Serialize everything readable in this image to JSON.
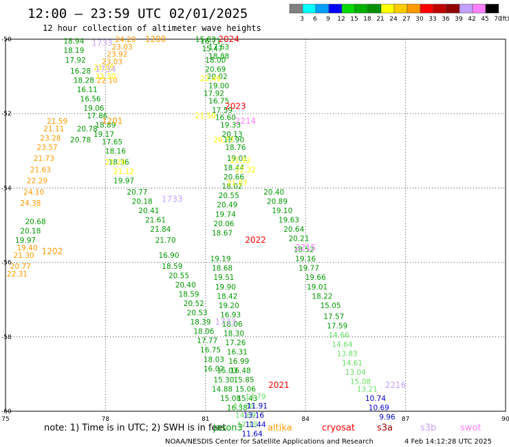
{
  "header": {
    "title": "12:00 — 23:59 UTC 02/01/2025",
    "subtitle": "12 hour collection of altimeter wave heights"
  },
  "legend": {
    "colors": [
      "#808080",
      "#00ffff",
      "#00a0ff",
      "#0000ff",
      "#00d800",
      "#00b000",
      "#009000",
      "#ffff00",
      "#ffcc00",
      "#ff9900",
      "#ff0000",
      "#c00000",
      "#900000",
      "#c4a0ff",
      "#ff80ff",
      "#000000"
    ],
    "labels": [
      "3",
      "6",
      "9",
      "12",
      "15",
      "18",
      "21",
      "24",
      "27",
      "30",
      "33",
      "36",
      "39",
      "42",
      "45",
      "70"
    ],
    "unit": "(ft)"
  },
  "note": {
    "text": "note:  1) Time is in UTC; 2) SWH is in feet"
  },
  "satellites": [
    {
      "name": "jason3",
      "color": "#009900"
    },
    {
      "name": "altika",
      "color": "#ff9900"
    },
    {
      "name": "cryosat",
      "color": "#ff0000"
    },
    {
      "name": "s3a",
      "color": "#aa0000"
    },
    {
      "name": "s3b",
      "color": "#c4a0ff"
    },
    {
      "name": "swot",
      "color": "#ff80ff"
    }
  ],
  "footer": {
    "credit": "NOAA/NESDIS Center for Satellite Applications and Research",
    "timestamp": "4 Feb 14:12:28 UTC 2025"
  },
  "chart_data": {
    "type": "scatter",
    "title": "12:00 — 23:59 UTC 02/01/2025",
    "xlabel": "",
    "ylabel": "",
    "xlim": [
      75,
      90
    ],
    "ylim": [
      -60,
      -50
    ],
    "xticks": [
      "75",
      "78",
      "81",
      "84",
      "87",
      "90"
    ],
    "yticks": [
      "-50",
      "-52",
      "-54",
      "-56",
      "-58",
      "-60"
    ],
    "grid": true,
    "pass_labels": [
      {
        "text": "1200",
        "x": 79.5,
        "y": -50.0,
        "color": "#ff9900"
      },
      {
        "text": "1733",
        "x": 77.9,
        "y": -50.1,
        "color": "#c4a0ff"
      },
      {
        "text": "1734",
        "x": 78.0,
        "y": -50.8,
        "color": "#c4a0ff"
      },
      {
        "text": "1201",
        "x": 78.2,
        "y": -52.2,
        "color": "#ff9900"
      },
      {
        "text": "1733",
        "x": 80.0,
        "y": -54.3,
        "color": "#c4a0ff"
      },
      {
        "text": "1202",
        "x": 76.4,
        "y": -55.7,
        "color": "#ff9900"
      },
      {
        "text": "2024",
        "x": 81.7,
        "y": -50.0,
        "color": "#ff0000"
      },
      {
        "text": "2023",
        "x": 81.9,
        "y": -51.8,
        "color": "#ff0000"
      },
      {
        "text": "2214",
        "x": 82.2,
        "y": -52.2,
        "color": "#ff80ff"
      },
      {
        "text": "2022",
        "x": 82.5,
        "y": -55.4,
        "color": "#ff0000"
      },
      {
        "text": "2215",
        "x": 84.0,
        "y": -55.6,
        "color": "#ff80ff"
      },
      {
        "text": "1733",
        "x": 81.6,
        "y": -57.6,
        "color": "#c4a0ff"
      },
      {
        "text": "2021",
        "x": 83.2,
        "y": -59.3,
        "color": "#ff0000"
      },
      {
        "text": "2216",
        "x": 86.7,
        "y": -59.3,
        "color": "#c4a0ff"
      }
    ],
    "series": [
      {
        "name": "1200",
        "color": "#ff9900",
        "points": [
          [
            78.6,
            -50.0,
            "24.20"
          ],
          [
            78.5,
            -50.2,
            "23.03"
          ],
          [
            78.35,
            -50.4,
            "23.92"
          ],
          [
            78.2,
            -50.6,
            "23.03"
          ],
          [
            78.05,
            -51.1,
            "22.10"
          ]
        ]
      },
      {
        "name": "1201",
        "color": "#ff9900",
        "points": [
          [
            76.55,
            -52.2,
            "21.59"
          ],
          [
            76.45,
            -52.4,
            "21.11"
          ],
          [
            76.35,
            -52.65,
            "23.28"
          ],
          [
            76.25,
            -52.9,
            "23.57"
          ],
          [
            76.15,
            -53.2,
            "21.73"
          ],
          [
            76.05,
            -53.5,
            "21.63"
          ],
          [
            75.95,
            -53.8,
            "22.29"
          ],
          [
            75.85,
            -54.1,
            "24.10"
          ],
          [
            75.75,
            -54.4,
            "24.38"
          ],
          [
            75.65,
            -55.6,
            "19.40"
          ],
          [
            75.55,
            -55.8,
            "21.30"
          ],
          [
            75.45,
            -56.1,
            "20.77"
          ],
          [
            75.35,
            -56.3,
            "22.31"
          ]
        ]
      },
      {
        "name": "1733",
        "color": "#009900",
        "points": [
          [
            77.05,
            -50.05,
            "18.94"
          ],
          [
            77.05,
            -50.3,
            "18.19"
          ],
          [
            77.1,
            -50.55,
            "17.92"
          ],
          [
            77.25,
            -50.85,
            "16.28"
          ],
          [
            77.35,
            -51.1,
            "18.28"
          ],
          [
            77.45,
            -51.35,
            "16.11"
          ],
          [
            77.55,
            -51.6,
            "16.56"
          ],
          [
            77.65,
            -51.85,
            "19.06"
          ],
          [
            77.75,
            -52.05,
            "17.86"
          ],
          [
            78.0,
            -52.3,
            "18.89"
          ],
          [
            77.45,
            -52.4,
            "20.78"
          ],
          [
            77.95,
            -52.55,
            "19.17"
          ],
          [
            77.25,
            -52.7,
            "20.78"
          ],
          [
            78.2,
            -52.75,
            "17.65"
          ],
          [
            78.3,
            -53.0,
            "18.16"
          ],
          [
            78.4,
            -53.3,
            "18.36"
          ],
          [
            78.55,
            -53.8,
            "19.97"
          ],
          [
            78.95,
            -54.1,
            "20.77"
          ],
          [
            79.1,
            -54.35,
            "20.18"
          ],
          [
            79.3,
            -54.6,
            "20.41"
          ],
          [
            75.9,
            -54.9,
            "20.68"
          ],
          [
            75.75,
            -55.15,
            "20.18"
          ],
          [
            75.6,
            -55.4,
            "19.97"
          ],
          [
            79.5,
            -54.85,
            "21.61"
          ],
          [
            79.65,
            -55.1,
            "21.84"
          ],
          [
            79.8,
            -55.4,
            "21.70"
          ],
          [
            79.9,
            -55.8,
            "16.90"
          ],
          [
            80.0,
            -56.1,
            "18.59"
          ],
          [
            80.2,
            -56.35,
            "20.55"
          ],
          [
            80.4,
            -56.6,
            "20.40"
          ],
          [
            80.5,
            -56.85,
            "18.59"
          ],
          [
            80.65,
            -57.1,
            "20.52"
          ],
          [
            80.75,
            -57.35,
            "20.53"
          ],
          [
            80.85,
            -57.6,
            "18.39"
          ],
          [
            80.95,
            -57.85,
            "18.06"
          ],
          [
            81.05,
            -58.1,
            "17.77"
          ],
          [
            81.15,
            -58.35,
            "16.75"
          ],
          [
            81.25,
            -58.6,
            "18.03"
          ],
          [
            81.25,
            -58.85,
            "16.02"
          ]
        ]
      },
      {
        "name": "2024",
        "color": "#009900",
        "points": [
          [
            81.0,
            -50.0,
            "15.83"
          ],
          [
            81.15,
            -50.05,
            "16.71"
          ],
          [
            81.2,
            -50.25,
            "15.47"
          ],
          [
            81.4,
            -50.2,
            "17.63"
          ],
          [
            81.4,
            -50.45,
            "18.88"
          ],
          [
            81.3,
            -50.55,
            "18.00"
          ],
          [
            81.3,
            -50.8,
            "20.69"
          ],
          [
            81.35,
            -51.0,
            "20.02"
          ],
          [
            81.4,
            -51.25,
            "19.00"
          ],
          [
            81.25,
            -51.45,
            "17.92"
          ],
          [
            81.4,
            -51.65,
            "16.75"
          ],
          [
            81.5,
            -51.9,
            "17.59"
          ],
          [
            81.6,
            -52.1,
            "16.60"
          ],
          [
            81.75,
            -52.3,
            "19.33"
          ],
          [
            81.8,
            -52.55,
            "20.13"
          ],
          [
            81.85,
            -52.7,
            "18.90"
          ],
          [
            81.9,
            -52.9,
            "18.76"
          ],
          [
            81.95,
            -53.2,
            "19.01"
          ],
          [
            81.85,
            -53.45,
            "18.44"
          ],
          [
            81.85,
            -53.7,
            "20.66"
          ],
          [
            81.8,
            -53.95,
            "18.02"
          ],
          [
            81.7,
            -54.2,
            "20.55"
          ],
          [
            81.65,
            -54.45,
            "20.49"
          ],
          [
            81.6,
            -54.7,
            "19.74"
          ],
          [
            81.55,
            -54.95,
            "20.06"
          ],
          [
            81.5,
            -55.2,
            "18.67"
          ]
        ]
      },
      {
        "name": "2023",
        "color": "#009900",
        "points": [
          [
            81.45,
            -55.9,
            "19.19"
          ],
          [
            81.5,
            -56.15,
            "18.68"
          ],
          [
            81.55,
            -56.4,
            "19.51"
          ],
          [
            81.6,
            -56.65,
            "19.90"
          ],
          [
            81.65,
            -56.9,
            "18.42"
          ],
          [
            81.7,
            -57.15,
            "19.20"
          ],
          [
            81.75,
            -57.4,
            "16.93"
          ],
          [
            81.8,
            -57.65,
            "18.06"
          ],
          [
            81.85,
            -57.9,
            "18.30"
          ],
          [
            81.9,
            -58.15,
            "17.26"
          ],
          [
            81.95,
            -58.4,
            "16.31"
          ],
          [
            82.0,
            -58.65,
            "16.99"
          ],
          [
            82.05,
            -58.9,
            "16.48"
          ],
          [
            82.15,
            -59.15,
            "15.85"
          ],
          [
            82.2,
            -59.4,
            "15.06"
          ],
          [
            82.25,
            -59.65,
            "15.43"
          ],
          [
            81.65,
            -58.9,
            "15.03"
          ],
          [
            81.55,
            -59.15,
            "15.30"
          ],
          [
            81.5,
            -59.4,
            "14.88"
          ],
          [
            81.75,
            -59.65,
            "15.08"
          ],
          [
            81.95,
            -59.9,
            "16.38"
          ]
        ]
      },
      {
        "name": "2022",
        "color": "#009900",
        "points": [
          [
            83.05,
            -54.1,
            "20.40"
          ],
          [
            83.15,
            -54.35,
            "20.89"
          ],
          [
            83.3,
            -54.6,
            "19.10"
          ],
          [
            83.5,
            -54.85,
            "19.63"
          ],
          [
            83.65,
            -55.1,
            "20.64"
          ],
          [
            83.8,
            -55.35,
            "20.21"
          ],
          [
            83.95,
            -55.65,
            "18.52"
          ],
          [
            84.0,
            -55.9,
            "19.16"
          ],
          [
            84.1,
            -56.15,
            "19.77"
          ],
          [
            84.3,
            -56.4,
            "19.66"
          ],
          [
            84.35,
            -56.65,
            "19.01"
          ],
          [
            84.5,
            -56.9,
            "18.22"
          ],
          [
            84.75,
            -57.15,
            "15.05"
          ],
          [
            84.85,
            -57.45,
            "17.57"
          ],
          [
            84.95,
            -57.7,
            "17.59"
          ]
        ]
      },
      {
        "name": "2021",
        "color": "#66dd66",
        "points": [
          [
            85.0,
            -57.95,
            "14.66"
          ],
          [
            85.1,
            -58.2,
            "14.64"
          ],
          [
            85.25,
            -58.45,
            "13.83"
          ],
          [
            85.4,
            -58.7,
            "14.61"
          ],
          [
            85.5,
            -58.95,
            "13.04"
          ],
          [
            85.65,
            -59.2,
            "15.08"
          ],
          [
            85.85,
            -59.4,
            "13.21"
          ],
          [
            82.5,
            -59.6,
            "14.79"
          ],
          [
            82.15,
            -59.85,
            "14.38"
          ],
          [
            82.2,
            -60.1,
            "14.69"
          ],
          [
            82.25,
            -60.35,
            "12.18"
          ]
        ]
      },
      {
        "name": "1734",
        "color": "#ffff00",
        "points": [
          [
            77.95,
            -50.75,
            "21.09"
          ],
          [
            78.0,
            -51.0,
            "22.30"
          ],
          [
            81.15,
            -51.05,
            "22.49"
          ],
          [
            81.0,
            -52.05,
            "21.50"
          ],
          [
            81.55,
            -52.7,
            "20.77"
          ],
          [
            82.05,
            -53.25,
            "21.92"
          ],
          [
            82.2,
            -53.5,
            "22.32"
          ],
          [
            81.95,
            -53.85,
            "21.67"
          ],
          [
            78.3,
            -53.3,
            "21.26"
          ],
          [
            78.55,
            -53.55,
            "21.12"
          ]
        ]
      },
      {
        "name": "2216",
        "color": "#0000cc",
        "points": [
          [
            82.55,
            -59.85,
            "11.91"
          ],
          [
            82.45,
            -60.1,
            "13.16"
          ],
          [
            82.5,
            -60.35,
            "11.44"
          ],
          [
            82.4,
            -60.6,
            "11.64"
          ],
          [
            86.1,
            -59.65,
            "10.74"
          ],
          [
            86.2,
            -59.9,
            "10.69"
          ],
          [
            86.45,
            -60.15,
            "9.96"
          ]
        ]
      }
    ]
  }
}
